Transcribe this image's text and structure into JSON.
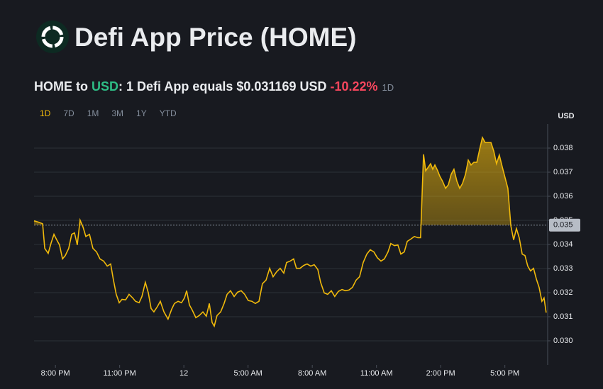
{
  "header": {
    "title": "Defi App Price (HOME)",
    "subtitle": {
      "base": "HOME to",
      "quote": "USD",
      "rate": ": 1 Defi App equals $0.031169 USD",
      "change": "-10.22%",
      "period": "1D"
    },
    "periods": [
      "1D",
      "7D",
      "1M",
      "3M",
      "1Y",
      "YTD"
    ],
    "active_period": "1D"
  },
  "chart_data": {
    "type": "line",
    "y_unit": "USD",
    "xlim": [
      0,
      24
    ],
    "ylim": [
      0.029,
      0.039
    ],
    "xticks": [
      {
        "value": 1,
        "label": "8:00 PM"
      },
      {
        "value": 4,
        "label": "11:00 PM"
      },
      {
        "value": 7,
        "label": "12"
      },
      {
        "value": 10,
        "label": "5:00 AM"
      },
      {
        "value": 13,
        "label": "8:00 AM"
      },
      {
        "value": 16,
        "label": "11:00 AM"
      },
      {
        "value": 19,
        "label": "2:00 PM"
      },
      {
        "value": 22,
        "label": "5:00 PM"
      }
    ],
    "yticks": [
      {
        "value": 0.03,
        "label": "0.030"
      },
      0.031,
      0.032,
      0.033,
      0.034,
      0.035,
      0.036,
      0.037,
      0.038
    ],
    "grid": true,
    "baseline": {
      "value": 0.0348,
      "label": "0.035"
    },
    "x": [
      0,
      0.23,
      0.4,
      0.5,
      0.66,
      0.8,
      0.93,
      1.06,
      1.19,
      1.33,
      1.46,
      1.62,
      1.76,
      1.89,
      2.02,
      2.15,
      2.29,
      2.42,
      2.59,
      2.75,
      2.92,
      3.08,
      3.25,
      3.42,
      3.58,
      3.71,
      3.84,
      3.98,
      4.11,
      4.28,
      4.44,
      4.61,
      4.74,
      4.91,
      5.04,
      5.2,
      5.34,
      5.47,
      5.6,
      5.77,
      5.9,
      6.07,
      6.26,
      6.43,
      6.56,
      6.73,
      6.89,
      7.03,
      7.13,
      7.26,
      7.39,
      7.56,
      7.72,
      7.89,
      8.05,
      8.19,
      8.32,
      8.42,
      8.55,
      8.72,
      8.88,
      9.02,
      9.18,
      9.35,
      9.51,
      9.68,
      9.84,
      10.01,
      10.18,
      10.34,
      10.51,
      10.67,
      10.84,
      11.01,
      11.17,
      11.34,
      11.5,
      11.67,
      11.8,
      11.97,
      12.13,
      12.26,
      12.43,
      12.6,
      12.76,
      12.93,
      13.09,
      13.26,
      13.39,
      13.56,
      13.72,
      13.89,
      14.05,
      14.22,
      14.39,
      14.55,
      14.72,
      14.88,
      15.05,
      15.21,
      15.38,
      15.55,
      15.71,
      15.88,
      16.04,
      16.21,
      16.37,
      16.54,
      16.67,
      16.84,
      17,
      17.14,
      17.3,
      17.44,
      17.6,
      17.77,
      17.93,
      18.06,
      18.2,
      18.3,
      18.4,
      18.53,
      18.63,
      18.73,
      18.86,
      18.96,
      19.09,
      19.23,
      19.36,
      19.49,
      19.62,
      19.76,
      19.89,
      20.02,
      20.16,
      20.29,
      20.42,
      20.55,
      20.69,
      20.82,
      20.95,
      21.08,
      21.22,
      21.35,
      21.48,
      21.61,
      21.74,
      21.88,
      22.01,
      22.14,
      22.28,
      22.41,
      22.54,
      22.67,
      22.81,
      22.94,
      23.07,
      23.2,
      23.34,
      23.47,
      23.6,
      23.73,
      23.83,
      23.93
    ],
    "series": [
      {
        "color": "#f0b90b",
        "values": [
          0.03498,
          0.03492,
          0.03486,
          0.03384,
          0.03363,
          0.03407,
          0.03442,
          0.03419,
          0.03398,
          0.0334,
          0.03354,
          0.03384,
          0.03442,
          0.03448,
          0.03398,
          0.03501,
          0.03472,
          0.03433,
          0.03442,
          0.03384,
          0.03369,
          0.0334,
          0.03331,
          0.0331,
          0.03319,
          0.03252,
          0.03193,
          0.03158,
          0.03172,
          0.0317,
          0.03193,
          0.03178,
          0.03164,
          0.03158,
          0.03184,
          0.03243,
          0.03199,
          0.03134,
          0.0312,
          0.03143,
          0.03164,
          0.0312,
          0.0309,
          0.03131,
          0.03155,
          0.03164,
          0.03158,
          0.03178,
          0.03208,
          0.03149,
          0.03128,
          0.03096,
          0.03105,
          0.0312,
          0.03102,
          0.03155,
          0.03076,
          0.03061,
          0.03105,
          0.0312,
          0.03155,
          0.03193,
          0.03208,
          0.03184,
          0.03202,
          0.03208,
          0.03193,
          0.03167,
          0.03164,
          0.03155,
          0.03164,
          0.03237,
          0.03252,
          0.03301,
          0.03266,
          0.03287,
          0.03301,
          0.03281,
          0.03325,
          0.03331,
          0.0334,
          0.03301,
          0.03301,
          0.03313,
          0.03319,
          0.0331,
          0.03316,
          0.03296,
          0.03243,
          0.03199,
          0.03193,
          0.03208,
          0.03184,
          0.03205,
          0.03213,
          0.03208,
          0.03211,
          0.03222,
          0.03252,
          0.03266,
          0.03325,
          0.0336,
          0.03378,
          0.03369,
          0.03345,
          0.03331,
          0.0334,
          0.03369,
          0.03404,
          0.03395,
          0.03398,
          0.0336,
          0.03369,
          0.03413,
          0.03422,
          0.03433,
          0.03428,
          0.03428,
          0.03774,
          0.03706,
          0.03718,
          0.03735,
          0.03712,
          0.0373,
          0.03706,
          0.03683,
          0.03662,
          0.03633,
          0.03648,
          0.03691,
          0.03712,
          0.03662,
          0.03633,
          0.03653,
          0.03691,
          0.0375,
          0.0373,
          0.03741,
          0.03741,
          0.03794,
          0.03844,
          0.03823,
          0.03823,
          0.03823,
          0.03788,
          0.03735,
          0.03771,
          0.03721,
          0.03677,
          0.03633,
          0.03477,
          0.03419,
          0.03466,
          0.03428,
          0.0336,
          0.03354,
          0.0331,
          0.0329,
          0.03301,
          0.03257,
          0.03222,
          0.03164,
          0.03178,
          0.03117
        ]
      }
    ]
  }
}
